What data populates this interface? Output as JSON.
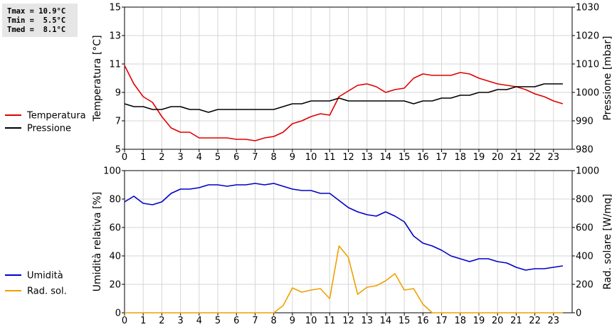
{
  "stats": {
    "tmax": "Tmax = 10.9°C",
    "tmin": "Tmin =  5.5°C",
    "tmed": "Tmed =  8.1°C"
  },
  "chart_data": [
    {
      "type": "line",
      "xlim": [
        0,
        24
      ],
      "x_ticks": [
        "0",
        "1",
        "2",
        "3",
        "4",
        "5",
        "6",
        "7",
        "8",
        "9",
        "10",
        "11",
        "12",
        "13",
        "14",
        "15",
        "16",
        "17",
        "18",
        "19",
        "20",
        "21",
        "22",
        "23"
      ],
      "ylabel_left": "Temperatura [°C]",
      "ylim_left": [
        5,
        15
      ],
      "yticks_left": [
        5,
        7,
        9,
        11,
        13,
        15
      ],
      "ylabel_right": "Pressione [mbar]",
      "ylim_right": [
        980,
        1030
      ],
      "yticks_right": [
        980,
        990,
        1000,
        1010,
        1020,
        1030
      ],
      "legend": "left",
      "grid": true,
      "series": [
        {
          "name": "Temperatura",
          "axis": "left",
          "color": "#e00000",
          "x": [
            0,
            0.5,
            1,
            1.5,
            2,
            2.5,
            3,
            3.5,
            4,
            4.5,
            5,
            5.5,
            6,
            6.5,
            7,
            7.5,
            8,
            8.5,
            9,
            9.5,
            10,
            10.5,
            11,
            11.5,
            12,
            12.5,
            13,
            13.5,
            14,
            14.5,
            15,
            15.5,
            16,
            16.5,
            17,
            17.5,
            18,
            18.5,
            19,
            19.5,
            20,
            20.5,
            21,
            21.5,
            22,
            22.5,
            23,
            23.5
          ],
          "y": [
            10.9,
            9.6,
            8.7,
            8.3,
            7.3,
            6.5,
            6.2,
            6.2,
            5.8,
            5.8,
            5.8,
            5.8,
            5.7,
            5.7,
            5.6,
            5.8,
            5.9,
            6.2,
            6.8,
            7.0,
            7.3,
            7.5,
            7.4,
            8.7,
            9.1,
            9.5,
            9.6,
            9.4,
            9.0,
            9.2,
            9.3,
            10.0,
            10.3,
            10.2,
            10.2,
            10.2,
            10.4,
            10.3,
            10.0,
            9.8,
            9.6,
            9.5,
            9.4,
            9.2,
            8.9,
            8.7,
            8.4,
            8.2
          ]
        },
        {
          "name": "Pressione",
          "axis": "right",
          "color": "#000000",
          "x": [
            0,
            0.5,
            1,
            1.5,
            2,
            2.5,
            3,
            3.5,
            4,
            4.5,
            5,
            5.5,
            6,
            6.5,
            7,
            7.5,
            8,
            8.5,
            9,
            9.5,
            10,
            10.5,
            11,
            11.5,
            12,
            12.5,
            13,
            13.5,
            14,
            14.5,
            15,
            15.5,
            16,
            16.5,
            17,
            17.5,
            18,
            18.5,
            19,
            19.5,
            20,
            20.5,
            21,
            21.5,
            22,
            22.5,
            23,
            23.5
          ],
          "y": [
            996,
            995,
            995,
            994,
            994,
            995,
            995,
            994,
            994,
            993,
            994,
            994,
            994,
            994,
            994,
            994,
            994,
            995,
            996,
            996,
            997,
            997,
            997,
            998,
            997,
            997,
            997,
            997,
            997,
            997,
            997,
            996,
            997,
            997,
            998,
            998,
            999,
            999,
            1000,
            1000,
            1001,
            1001,
            1002,
            1002,
            1002,
            1003,
            1003,
            1003
          ]
        }
      ]
    },
    {
      "type": "line",
      "xlim": [
        0,
        24
      ],
      "x_ticks": [
        "0",
        "1",
        "2",
        "3",
        "4",
        "5",
        "6",
        "7",
        "8",
        "9",
        "10",
        "11",
        "12",
        "13",
        "14",
        "15",
        "16",
        "17",
        "18",
        "19",
        "20",
        "21",
        "22",
        "23"
      ],
      "ylabel_left": "Umidità relativa [%]",
      "ylim_left": [
        0,
        100
      ],
      "yticks_left": [
        0,
        20,
        40,
        60,
        80,
        100
      ],
      "ylabel_right": "Rad. solare [W/mq]",
      "ylim_right": [
        0,
        1000
      ],
      "yticks_right": [
        0,
        200,
        400,
        600,
        800,
        1000
      ],
      "legend": "left",
      "grid": true,
      "series": [
        {
          "name": "Umidità",
          "axis": "left",
          "color": "#0000c8",
          "x": [
            0,
            0.5,
            1,
            1.5,
            2,
            2.5,
            3,
            3.5,
            4,
            4.5,
            5,
            5.5,
            6,
            6.5,
            7,
            7.5,
            8,
            8.5,
            9,
            9.5,
            10,
            10.5,
            11,
            11.5,
            12,
            12.5,
            13,
            13.5,
            14,
            14.5,
            15,
            15.5,
            16,
            16.5,
            17,
            17.5,
            18,
            18.5,
            19,
            19.5,
            20,
            20.5,
            21,
            21.5,
            22,
            22.5,
            23,
            23.5
          ],
          "y": [
            78,
            82,
            77,
            76,
            78,
            84,
            87,
            87,
            88,
            90,
            90,
            89,
            90,
            90,
            91,
            90,
            91,
            89,
            87,
            86,
            86,
            84,
            84,
            79,
            74,
            71,
            69,
            68,
            71,
            68,
            64,
            54,
            49,
            47,
            44,
            40,
            38,
            36,
            38,
            38,
            36,
            35,
            32,
            30,
            31,
            31,
            32,
            33
          ]
        },
        {
          "name": "Rad. sol.",
          "axis": "right",
          "color": "#f0a000",
          "x": [
            0,
            0.5,
            1,
            1.5,
            2,
            2.5,
            3,
            3.5,
            4,
            4.5,
            5,
            5.5,
            6,
            6.5,
            7,
            7.5,
            8,
            8.5,
            9,
            9.5,
            10,
            10.5,
            11,
            11.5,
            12,
            12.5,
            13,
            13.5,
            14,
            14.5,
            15,
            15.5,
            16,
            16.5,
            17,
            17.5,
            18,
            18.5,
            19,
            19.5,
            20,
            20.5,
            21,
            21.5,
            22,
            22.5,
            23,
            23.5
          ],
          "y": [
            0,
            0,
            0,
            0,
            0,
            0,
            0,
            0,
            0,
            0,
            0,
            0,
            0,
            0,
            0,
            0,
            0,
            50,
            175,
            145,
            160,
            170,
            100,
            470,
            390,
            130,
            180,
            190,
            225,
            275,
            160,
            170,
            60,
            0,
            0,
            0,
            0,
            0,
            0,
            0,
            0,
            0,
            0,
            0,
            0,
            0,
            0,
            0
          ]
        }
      ]
    }
  ]
}
